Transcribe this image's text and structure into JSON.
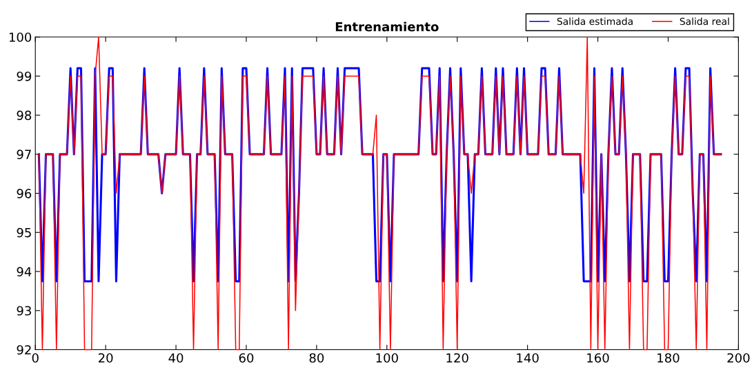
{
  "chart_data": {
    "type": "line",
    "title": "Entrenamiento",
    "x": [
      1,
      2,
      3,
      4,
      5,
      6,
      7,
      8,
      9,
      10,
      11,
      12,
      13,
      14,
      15,
      16,
      17,
      18,
      19,
      20,
      21,
      22,
      23,
      24,
      25,
      26,
      27,
      28,
      29,
      30,
      31,
      32,
      33,
      34,
      35,
      36,
      37,
      38,
      39,
      40,
      41,
      42,
      43,
      44,
      45,
      46,
      47,
      48,
      49,
      50,
      51,
      52,
      53,
      54,
      55,
      56,
      57,
      58,
      59,
      60,
      61,
      62,
      63,
      64,
      65,
      66,
      67,
      68,
      69,
      70,
      71,
      72,
      73,
      74,
      75,
      76,
      77,
      78,
      79,
      80,
      81,
      82,
      83,
      84,
      85,
      86,
      87,
      88,
      89,
      90,
      91,
      92,
      93,
      94,
      95,
      96,
      97,
      98,
      99,
      100,
      101,
      102,
      103,
      104,
      105,
      106,
      107,
      108,
      109,
      110,
      111,
      112,
      113,
      114,
      115,
      116,
      117,
      118,
      119,
      120,
      121,
      122,
      123,
      124,
      125,
      126,
      127,
      128,
      129,
      130,
      131,
      132,
      133,
      134,
      135,
      136,
      137,
      138,
      139,
      140,
      141,
      142,
      143,
      144,
      145,
      146,
      147,
      148,
      149,
      150,
      151,
      152,
      153,
      154,
      155,
      156,
      157,
      158,
      159,
      160,
      161,
      162,
      163,
      164,
      165,
      166,
      167,
      168,
      169,
      170,
      171,
      172,
      173,
      174,
      175,
      176,
      177,
      178,
      179,
      180,
      181,
      182,
      183,
      184,
      185,
      186,
      187,
      188,
      189,
      190,
      191,
      192,
      193,
      194,
      195
    ],
    "series": [
      {
        "name": "Salida estimada",
        "color": "#0000ff",
        "values": [
          97,
          93.75,
          97,
          97,
          97,
          93.75,
          97,
          97,
          97,
          99.2,
          97,
          99.2,
          99.2,
          93.75,
          93.75,
          93.75,
          99.2,
          93.75,
          97,
          97,
          99.2,
          99.2,
          93.75,
          97,
          97,
          97,
          97,
          97,
          97,
          97,
          99.2,
          97,
          97,
          97,
          97,
          96,
          97,
          97,
          97,
          97,
          99.2,
          97,
          97,
          97,
          93.75,
          97,
          97,
          99.2,
          97,
          97,
          97,
          93.75,
          99.2,
          97,
          97,
          97,
          93.75,
          93.75,
          99.2,
          99.2,
          97,
          97,
          97,
          97,
          97,
          99.2,
          97,
          97,
          97,
          97,
          99.2,
          93.75,
          99.2,
          93.75,
          96,
          99.2,
          99.2,
          99.2,
          99.2,
          97,
          97,
          99.2,
          97,
          97,
          97,
          99.2,
          97,
          99.2,
          99.2,
          99.2,
          99.2,
          99.2,
          97,
          97,
          97,
          97,
          93.75,
          93.75,
          97,
          97,
          93.75,
          97,
          97,
          97,
          97,
          97,
          97,
          97,
          97,
          99.2,
          99.2,
          99.2,
          97,
          97,
          99.2,
          93.75,
          97,
          99.2,
          97,
          93.75,
          99.2,
          97,
          97,
          93.75,
          97,
          97,
          99.2,
          97,
          97,
          97,
          99.2,
          97,
          99.2,
          97,
          97,
          97,
          99.2,
          97,
          99.2,
          97,
          97,
          97,
          97,
          99.2,
          99.2,
          97,
          97,
          97,
          99.2,
          97,
          97,
          97,
          97,
          97,
          97,
          93.75,
          93.75,
          93.75,
          99.2,
          93.75,
          97,
          93.75,
          97,
          99.2,
          97,
          97,
          99.2,
          97,
          93.75,
          97,
          97,
          97,
          93.75,
          93.75,
          97,
          97,
          97,
          97,
          93.75,
          93.75,
          97,
          99.2,
          97,
          97,
          99.2,
          99.2,
          96,
          93.75,
          97,
          97,
          93.75,
          99.2,
          97,
          97,
          97
        ]
      },
      {
        "name": "Salida real",
        "color": "#ff0000",
        "values": [
          97,
          92,
          97,
          97,
          97,
          92,
          97,
          97,
          97,
          99,
          97,
          99,
          99,
          92,
          92,
          92,
          99,
          100,
          97,
          97,
          99,
          99,
          96,
          97,
          97,
          97,
          97,
          97,
          97,
          97,
          99,
          97,
          97,
          97,
          97,
          96,
          97,
          97,
          97,
          97,
          99,
          97,
          97,
          97,
          92,
          97,
          97,
          99,
          97,
          97,
          97,
          92,
          99,
          97,
          97,
          97,
          92,
          92,
          99,
          99,
          97,
          97,
          97,
          97,
          97,
          99,
          97,
          97,
          97,
          97,
          99,
          92,
          99,
          93,
          96,
          99,
          99,
          99,
          99,
          97,
          97,
          99,
          97,
          97,
          97,
          99,
          97,
          99,
          99,
          99,
          99,
          99,
          97,
          97,
          97,
          97,
          98,
          92,
          97,
          97,
          92,
          97,
          97,
          97,
          97,
          97,
          97,
          97,
          97,
          99,
          99,
          99,
          97,
          97,
          99,
          92,
          97,
          99,
          97,
          92,
          99,
          97,
          97,
          96,
          97,
          97,
          99,
          97,
          97,
          97,
          99,
          97,
          99,
          97,
          97,
          97,
          99,
          97,
          99,
          97,
          97,
          97,
          97,
          99,
          99,
          97,
          97,
          97,
          99,
          97,
          97,
          97,
          97,
          97,
          97,
          96,
          100,
          92,
          99,
          92,
          97,
          92,
          97,
          99,
          97,
          97,
          99,
          97,
          92,
          97,
          97,
          97,
          92,
          92,
          97,
          97,
          97,
          97,
          92,
          92,
          97,
          99,
          97,
          97,
          99,
          99,
          96,
          92,
          97,
          97,
          92,
          99,
          97,
          97,
          97
        ]
      }
    ],
    "xlim": [
      0,
      200
    ],
    "xticks": [
      0,
      20,
      40,
      60,
      80,
      100,
      120,
      140,
      160,
      180,
      200
    ],
    "ylim": [
      92,
      100
    ],
    "yticks": [
      92,
      93,
      94,
      95,
      96,
      97,
      98,
      99,
      100
    ],
    "legend": "top right",
    "grid": false,
    "marker": "none",
    "line_style": "solid"
  }
}
